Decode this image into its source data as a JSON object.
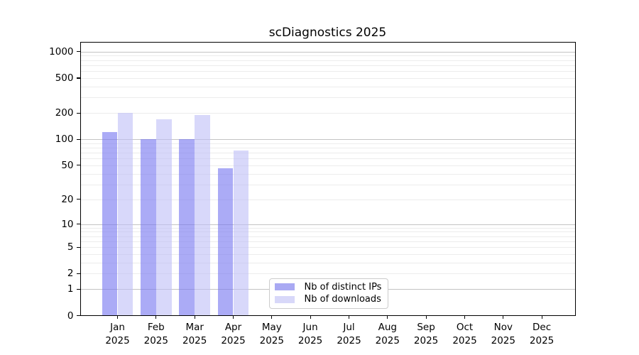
{
  "chart_data": {
    "type": "bar",
    "title": "scDiagnostics 2025",
    "x_months": [
      "Jan",
      "Feb",
      "Mar",
      "Apr",
      "May",
      "Jun",
      "Jul",
      "Aug",
      "Sep",
      "Oct",
      "Nov",
      "Dec"
    ],
    "x_year": "2025",
    "series": [
      {
        "name": "Nb of distinct IPs",
        "legend_color": "#a9a9f3",
        "bar_rgba": "rgba(120,120,240,0.62)",
        "values": [
          120,
          100,
          101,
          46,
          null,
          null,
          null,
          null,
          null,
          null,
          null,
          null
        ]
      },
      {
        "name": "Nb of downloads",
        "legend_color": "#d8d8f9",
        "bar_rgba": "rgba(190,190,246,0.6)",
        "values": [
          202,
          170,
          191,
          74,
          null,
          null,
          null,
          null,
          null,
          null,
          null,
          null
        ]
      }
    ],
    "y_axis": {
      "scale": "log10(value+1)",
      "ticks": [
        0,
        1,
        2,
        5,
        10,
        20,
        50,
        100,
        200,
        500,
        1000
      ],
      "major_gridlines": [
        1,
        10,
        100,
        1000
      ],
      "minor_gridlines": [
        2,
        3,
        4,
        5,
        6,
        7,
        8,
        9,
        20,
        30,
        40,
        50,
        60,
        70,
        80,
        90,
        200,
        300,
        400,
        500,
        600,
        700,
        800,
        900
      ],
      "top_value": 1268
    },
    "grid": true,
    "legend_position": "lower center",
    "colors": {
      "major_grid": "#c3c3c3",
      "minor_grid": "#ececec",
      "spine": "#000000",
      "background": "#ffffff"
    }
  }
}
